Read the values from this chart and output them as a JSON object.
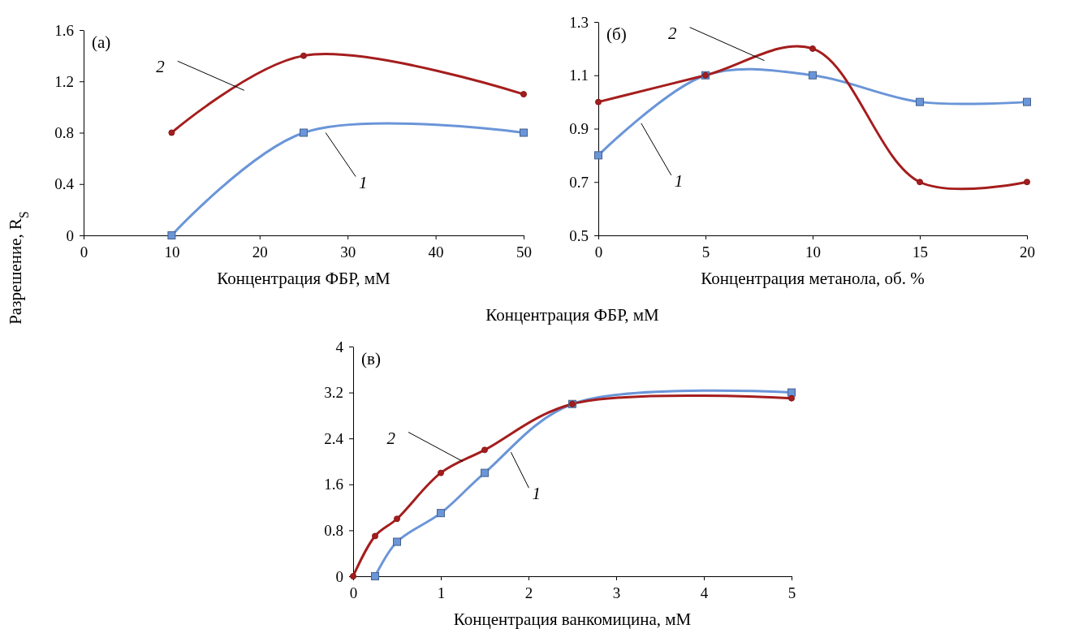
{
  "chart_data": [
    {
      "type": "line",
      "xlabel": "Концентрация ФБР, мМ",
      "ylabel": "Разрешение, R$_{S}$",
      "annotations": [
        "(а)"
      ],
      "xlim": [
        0,
        50
      ],
      "xticks": [
        0,
        10,
        20,
        30,
        40,
        50
      ],
      "ylim": [
        0,
        1.6
      ],
      "yticks": [
        0,
        0.4,
        0.8,
        1.2,
        1.6
      ],
      "grid": false,
      "x": [
        10,
        25,
        50
      ],
      "series": [
        {
          "name": "1",
          "color": "#6a95d8",
          "marker": "square",
          "values": [
            0,
            0.8,
            0.8
          ]
        },
        {
          "name": "2",
          "color": "#a51d1d",
          "marker": "circle",
          "values": [
            0.8,
            1.4,
            1.1
          ]
        }
      ]
    },
    {
      "type": "line",
      "xlabel": "Концентрация метанола, об. %",
      "annotations": [
        "(б)"
      ],
      "xlim": [
        0,
        20
      ],
      "xticks": [
        0,
        5,
        10,
        15,
        20
      ],
      "ylim": [
        0.5,
        1.3
      ],
      "yticks": [
        0.5,
        0.7,
        0.9,
        1.1,
        1.3
      ],
      "grid": false,
      "x": [
        0,
        5,
        10,
        15,
        20
      ],
      "series": [
        {
          "name": "1",
          "color": "#6a95d8",
          "marker": "square",
          "values": [
            0.8,
            1.1,
            1.1,
            1.0,
            1.0
          ]
        },
        {
          "name": "2",
          "color": "#a51d1d",
          "marker": "circle",
          "values": [
            1.0,
            1.1,
            1.2,
            0.7,
            0.7
          ]
        }
      ]
    },
    {
      "type": "line",
      "title": "Концентрация ФБР, мМ",
      "xlabel": "Концентрация ванкомицина, мМ",
      "annotations": [
        "(в)"
      ],
      "xlim": [
        0,
        5
      ],
      "xticks": [
        0,
        1,
        2,
        3,
        4,
        5
      ],
      "ylim": [
        0,
        4
      ],
      "yticks": [
        0,
        0.8,
        1.6,
        2.4,
        3.2,
        4
      ],
      "grid": false,
      "series": [
        {
          "name": "1",
          "color": "#6a95d8",
          "marker": "square",
          "x": [
            0.25,
            0.5,
            1,
            1.5,
            2.5,
            5
          ],
          "values": [
            0,
            0.6,
            1.1,
            1.8,
            3.0,
            3.2
          ]
        },
        {
          "name": "2",
          "color": "#a51d1d",
          "marker": "circle",
          "x": [
            0,
            0.25,
            0.5,
            1,
            1.5,
            2.5,
            5
          ],
          "values": [
            0,
            0.7,
            1.0,
            1.8,
            2.2,
            3.0,
            3.1
          ]
        }
      ]
    }
  ]
}
